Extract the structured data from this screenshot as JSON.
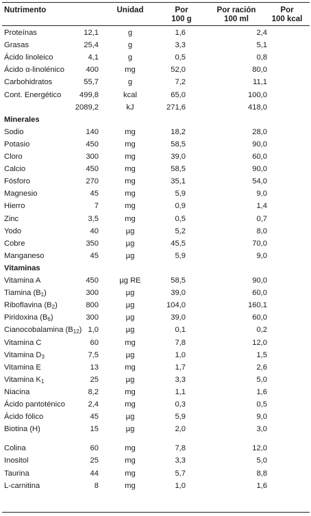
{
  "headers": {
    "col0": "Nutrimento",
    "col1": "Unidad",
    "col2_line1": "Por",
    "col2_line2": "100 g",
    "col3_line1": "Por ración",
    "col3_line2": "100 ml",
    "col4_line1": "Por",
    "col4_line2": "100 kcal"
  },
  "rows": [
    {
      "name": "Proteínas",
      "unit": "g",
      "per100g": "12,1",
      "perRation": "1,6",
      "per100kcal": "2,4"
    },
    {
      "name": "Grasas",
      "unit": "g",
      "per100g": "25,4",
      "perRation": "3,3",
      "per100kcal": "5,1"
    },
    {
      "name": "Ácido linoleico",
      "unit": "g",
      "per100g": "4,1",
      "perRation": "0,5",
      "per100kcal": "0,8"
    },
    {
      "name": "Ácido α-linolénico",
      "unit": "mg",
      "per100g": "400",
      "perRation": "52,0",
      "per100kcal": "80,0"
    },
    {
      "name": "Carbohidratos",
      "unit": "g",
      "per100g": "55,7",
      "perRation": "7,2",
      "per100kcal": "11,1"
    },
    {
      "name": "Cont. Energético",
      "unit": "kcal",
      "per100g": "499,8",
      "perRation": "65,0",
      "per100kcal": "100,0"
    },
    {
      "name": "",
      "unit": "kJ",
      "per100g": "2089,2",
      "perRation": "271,6",
      "per100kcal": "418,0"
    },
    {
      "section": "Minerales"
    },
    {
      "name": "Sodio",
      "unit": "mg",
      "per100g": "140",
      "perRation": "18,2",
      "per100kcal": "28,0"
    },
    {
      "name": "Potasio",
      "unit": "mg",
      "per100g": "450",
      "perRation": "58,5",
      "per100kcal": "90,0"
    },
    {
      "name": "Cloro",
      "unit": "mg",
      "per100g": "300",
      "perRation": "39,0",
      "per100kcal": "60,0"
    },
    {
      "name": "Calcio",
      "unit": "mg",
      "per100g": "450",
      "perRation": "58,5",
      "per100kcal": "90,0"
    },
    {
      "name": "Fósforo",
      "unit": "mg",
      "per100g": "270",
      "perRation": "35,1",
      "per100kcal": "54,0"
    },
    {
      "name": "Magnesio",
      "unit": "mg",
      "per100g": "45",
      "perRation": "5,9",
      "per100kcal": "9,0"
    },
    {
      "name": "Hierro",
      "unit": "mg",
      "per100g": "7",
      "perRation": "0,9",
      "per100kcal": "1,4"
    },
    {
      "name": "Zinc",
      "unit": "mg",
      "per100g": "3,5",
      "perRation": "0,5",
      "per100kcal": "0,7"
    },
    {
      "name": "Yodo",
      "unit": "µg",
      "per100g": "40",
      "perRation": "5,2",
      "per100kcal": "8,0"
    },
    {
      "name": "Cobre",
      "unit": "µg",
      "per100g": "350",
      "perRation": "45,5",
      "per100kcal": "70,0"
    },
    {
      "name": "Manganeso",
      "unit": "µg",
      "per100g": "45",
      "perRation": "5,9",
      "per100kcal": "9,0"
    },
    {
      "section": "Vitaminas"
    },
    {
      "name": "Vitamina A",
      "unit": "µg RE",
      "per100g": "450",
      "perRation": "58,5",
      "per100kcal": "90,0"
    },
    {
      "name": "Tiamina (B",
      "sub": "1",
      "after": ")",
      "unit": "µg",
      "per100g": "300",
      "perRation": "39,0",
      "per100kcal": "60,0"
    },
    {
      "name": "Riboflavina (B",
      "sub": "2",
      "after": ")",
      "unit": "µg",
      "per100g": "800",
      "perRation": "104,0",
      "per100kcal": "160,1"
    },
    {
      "name": "Piridoxina (B",
      "sub": "6",
      "after": ")",
      "unit": "µg",
      "per100g": "300",
      "perRation": "39,0",
      "per100kcal": "60,0"
    },
    {
      "name": "Cianocobalamina (B",
      "sub": "12",
      "after": ")",
      "unit": "µg",
      "per100g": "1,0",
      "perRation": "0,1",
      "per100kcal": "0,2"
    },
    {
      "name": "Vitamina C",
      "unit": "mg",
      "per100g": "60",
      "perRation": "7,8",
      "per100kcal": "12,0"
    },
    {
      "name": "Vitamina D",
      "sub": "3",
      "unit": "µg",
      "per100g": "7,5",
      "perRation": "1,0",
      "per100kcal": "1,5"
    },
    {
      "name": "Vitamina E",
      "unit": "mg",
      "per100g": "13",
      "perRation": "1,7",
      "per100kcal": "2,6"
    },
    {
      "name": "Vitamina K",
      "sub": "1",
      "unit": "µg",
      "per100g": "25",
      "perRation": "3,3",
      "per100kcal": "5,0"
    },
    {
      "name": "Niacina",
      "unit": "mg",
      "per100g": "8,2",
      "perRation": "1,1",
      "per100kcal": "1,6"
    },
    {
      "name": "Ácido pantoténico",
      "unit": "mg",
      "per100g": "2,4",
      "perRation": "0,3",
      "per100kcal": "0,5"
    },
    {
      "name": "Ácido fólico",
      "unit": "µg",
      "per100g": "45",
      "perRation": "5,9",
      "per100kcal": "9,0"
    },
    {
      "name": "Biotina (H)",
      "unit": "µg",
      "per100g": "15",
      "perRation": "2,0",
      "per100kcal": "3,0"
    },
    {
      "gap": true
    },
    {
      "name": "Colina",
      "unit": "mg",
      "per100g": "60",
      "perRation": "7,8",
      "per100kcal": "12,0"
    },
    {
      "name": "Inositol",
      "unit": "mg",
      "per100g": "25",
      "perRation": "3,3",
      "per100kcal": "5,0"
    },
    {
      "name": "Taurina",
      "unit": "mg",
      "per100g": "44",
      "perRation": "5,7",
      "per100kcal": "8,8"
    },
    {
      "name": "L-carnitina",
      "unit": "mg",
      "per100g": "8",
      "perRation": "1,0",
      "per100kcal": "1,6"
    }
  ]
}
